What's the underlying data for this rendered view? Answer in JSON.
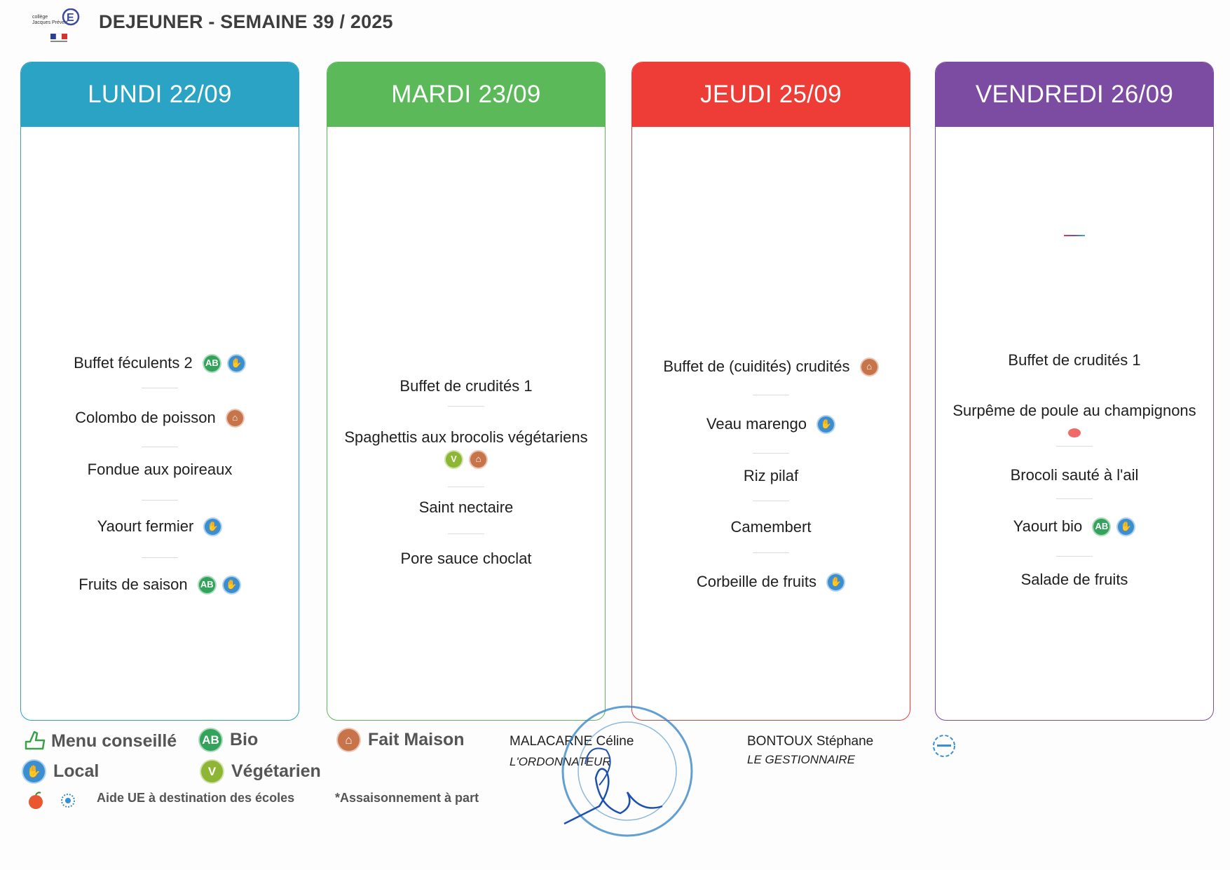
{
  "header": {
    "title": "DEJEUNER - SEMAINE 39 / 2025",
    "logo_text": "Collège Jacques Prévert"
  },
  "colors": {
    "lundi": "#2ba3c4",
    "mardi": "#5bb95a",
    "jeudi": "#ee3c37",
    "vendredi": "#7c4ba2",
    "bio": "#33a25a",
    "local": "#3b8fd1",
    "fait_maison": "#c8744a",
    "vegetarien": "#8cb634"
  },
  "days": [
    {
      "label": "LUNDI 22/09",
      "dishes": [
        {
          "name": "Buffet féculents 2",
          "badges": [
            "bio-icon",
            "local-icon"
          ]
        },
        {
          "name": "Colombo de poisson",
          "badges": [
            "fait-maison-icon"
          ]
        },
        {
          "name": "Fondue aux poireaux",
          "badges": []
        },
        {
          "name": "Yaourt fermier",
          "badges": [
            "local-icon"
          ]
        },
        {
          "name": "Fruits de saison",
          "badges": [
            "bio-icon",
            "local-icon"
          ]
        }
      ]
    },
    {
      "label": "MARDI 23/09",
      "dishes": [
        {
          "name": "Buffet de crudités 1",
          "badges": []
        },
        {
          "name": "Spaghettis aux brocolis végétariens",
          "badges": [
            "vegetarien-icon",
            "fait-maison-icon"
          ]
        },
        {
          "name": "Saint nectaire",
          "badges": []
        },
        {
          "name": "Pore sauce choclat",
          "badges": []
        }
      ]
    },
    {
      "label": "JEUDI 25/09",
      "dishes": [
        {
          "name": "Buffet de (cuidités) crudités",
          "badges": [
            "fait-maison-icon"
          ]
        },
        {
          "name": "Veau marengo",
          "badges": [
            "local-icon"
          ]
        },
        {
          "name": "Riz pilaf",
          "badges": []
        },
        {
          "name": "Camembert",
          "badges": []
        },
        {
          "name": "Corbeille de fruits",
          "badges": [
            "local-icon"
          ]
        }
      ]
    },
    {
      "label": "VENDREDI 26/09",
      "dishes": [
        {
          "name": "Buffet de crudités 1",
          "badges": []
        },
        {
          "name": "Surpême de poule au champignons",
          "badges": [
            "aide-ue-icon"
          ]
        },
        {
          "name": "Brocoli sauté à l'ail",
          "badges": []
        },
        {
          "name": "Yaourt bio",
          "badges": [
            "bio-icon",
            "local-icon"
          ]
        },
        {
          "name": "Salade de fruits",
          "badges": []
        }
      ]
    }
  ],
  "legend": {
    "menu_conseille": "Menu conseillé",
    "bio": "Bio",
    "fait_maison": "Fait Maison",
    "local": "Local",
    "vegetarien": "Végétarien",
    "aide_ue": "Aide UE à destination des écoles",
    "assaisonnement": "*Assaisonnement à part",
    "bio_glyph": "AB"
  },
  "signatures": {
    "ordonnateur_name": "MALACARNE Céline",
    "ordonnateur_role": "L'ORDONNATEUR",
    "gestionnaire_name": "BONTOUX Stéphane",
    "gestionnaire_role": "LE GESTIONNAIRE"
  }
}
